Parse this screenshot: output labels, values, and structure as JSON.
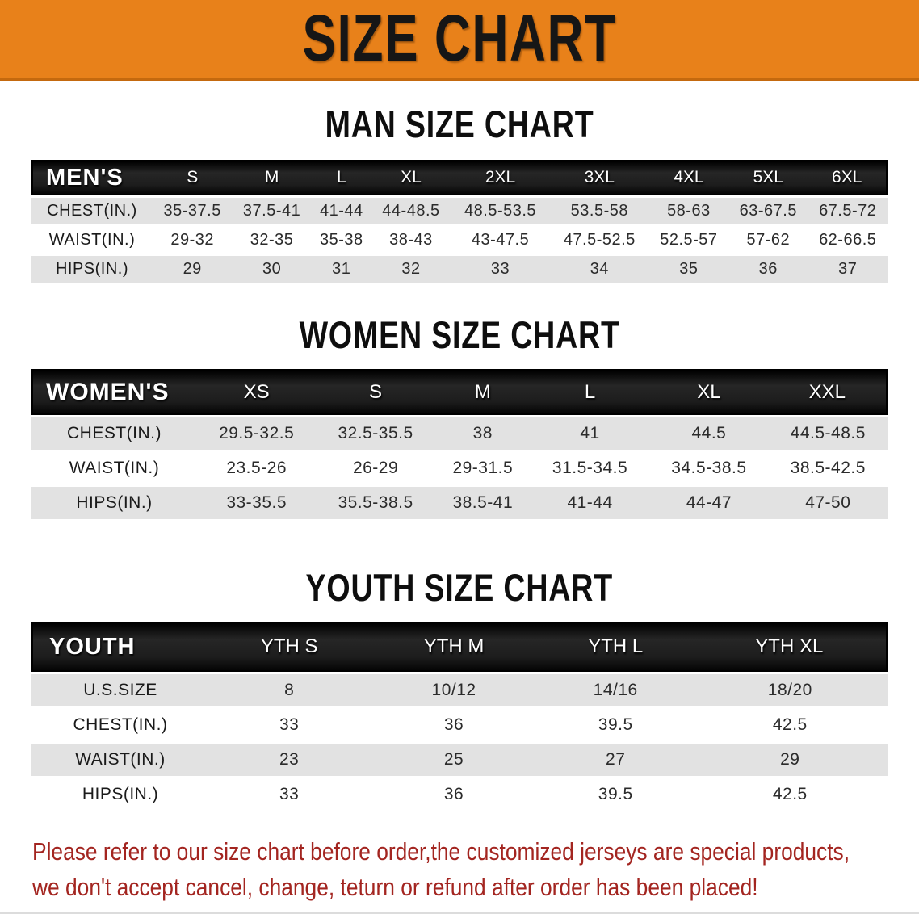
{
  "banner": {
    "title": "SIZE CHART"
  },
  "colors": {
    "banner_orange": "#E8811A",
    "banner_orange_edge": "#C4690E",
    "header_band_black": "#1D1D1D",
    "row_shade_grey": "#E2E2E2",
    "row_plain_white": "#FFFFFF",
    "note_red": "#A32520"
  },
  "sections": [
    {
      "heading": "MAN SIZE CHART",
      "table": {
        "header_label": "MEN'S",
        "columns": [
          "S",
          "M",
          "L",
          "XL",
          "2XL",
          "3XL",
          "4XL",
          "5XL",
          "6XL"
        ],
        "rows": [
          {
            "label": "CHEST(IN.)",
            "values": [
              "35-37.5",
              "37.5-41",
              "41-44",
              "44-48.5",
              "48.5-53.5",
              "53.5-58",
              "58-63",
              "63-67.5",
              "67.5-72"
            ]
          },
          {
            "label": "WAIST(IN.)",
            "values": [
              "29-32",
              "32-35",
              "35-38",
              "38-43",
              "43-47.5",
              "47.5-52.5",
              "52.5-57",
              "57-62",
              "62-66.5"
            ]
          },
          {
            "label": "HIPS(IN.)",
            "values": [
              "29",
              "30",
              "31",
              "32",
              "33",
              "34",
              "35",
              "36",
              "37"
            ]
          }
        ]
      }
    },
    {
      "heading": "WOMEN SIZE CHART",
      "table": {
        "header_label": "WOMEN'S",
        "columns": [
          "XS",
          "S",
          "M",
          "L",
          "XL",
          "XXL"
        ],
        "rows": [
          {
            "label": "CHEST(IN.)",
            "values": [
              "29.5-32.5",
              "32.5-35.5",
              "38",
              "41",
              "44.5",
              "44.5-48.5"
            ]
          },
          {
            "label": "WAIST(IN.)",
            "values": [
              "23.5-26",
              "26-29",
              "29-31.5",
              "31.5-34.5",
              "34.5-38.5",
              "38.5-42.5"
            ]
          },
          {
            "label": "HIPS(IN.)",
            "values": [
              "33-35.5",
              "35.5-38.5",
              "38.5-41",
              "41-44",
              "44-47",
              "47-50"
            ]
          }
        ]
      }
    },
    {
      "heading": "YOUTH SIZE CHART",
      "table": {
        "header_label": "YOUTH",
        "columns": [
          "YTH S",
          "YTH M",
          "YTH L",
          "YTH XL"
        ],
        "rows": [
          {
            "label": "U.S.SIZE",
            "values": [
              "8",
              "10/12",
              "14/16",
              "18/20"
            ]
          },
          {
            "label": "CHEST(IN.)",
            "values": [
              "33",
              "36",
              "39.5",
              "42.5"
            ]
          },
          {
            "label": "WAIST(IN.)",
            "values": [
              "23",
              "25",
              "27",
              "29"
            ]
          },
          {
            "label": "HIPS(IN.)",
            "values": [
              "33",
              "36",
              "39.5",
              "42.5"
            ]
          }
        ]
      }
    }
  ],
  "footer": {
    "line1": "Please refer to our size chart before order,the customized jerseys are special products,",
    "line2": "we don't accept cancel, change, teturn or refund after order has been placed!"
  }
}
